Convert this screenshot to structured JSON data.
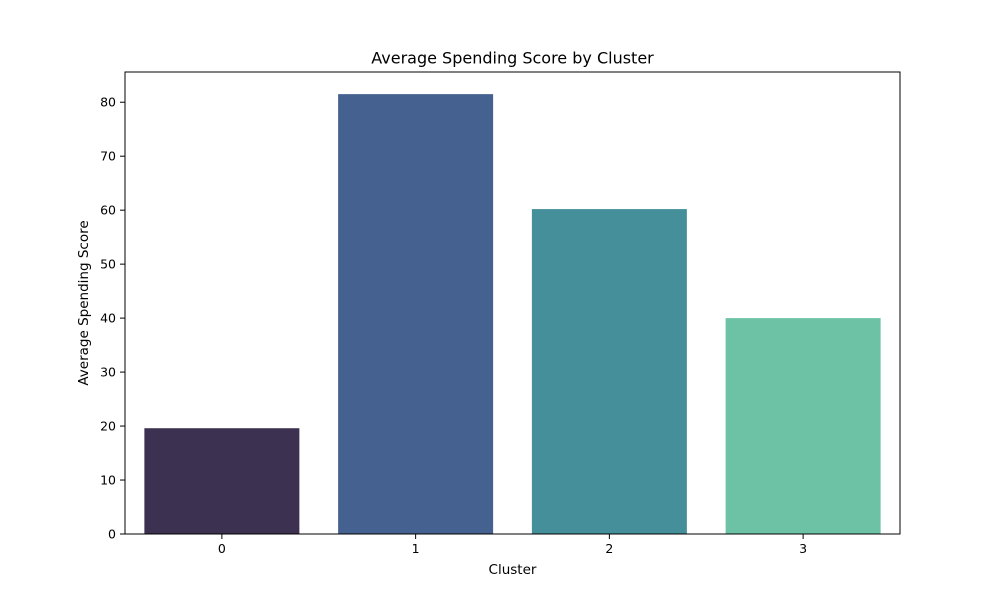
{
  "chart_data": {
    "type": "bar",
    "title": "Average Spending Score by Cluster",
    "xlabel": "Cluster",
    "ylabel": "Average Spending Score",
    "categories": [
      "0",
      "1",
      "2",
      "3"
    ],
    "values": [
      19.6,
      81.5,
      60.2,
      40.0
    ],
    "colors": [
      "#3c3150",
      "#45618f",
      "#448f99",
      "#6dc2a6"
    ],
    "ylim": [
      0,
      85.6
    ],
    "yticks": [
      0,
      10,
      20,
      30,
      40,
      50,
      60,
      70,
      80
    ],
    "grid": false,
    "legend": "none"
  }
}
